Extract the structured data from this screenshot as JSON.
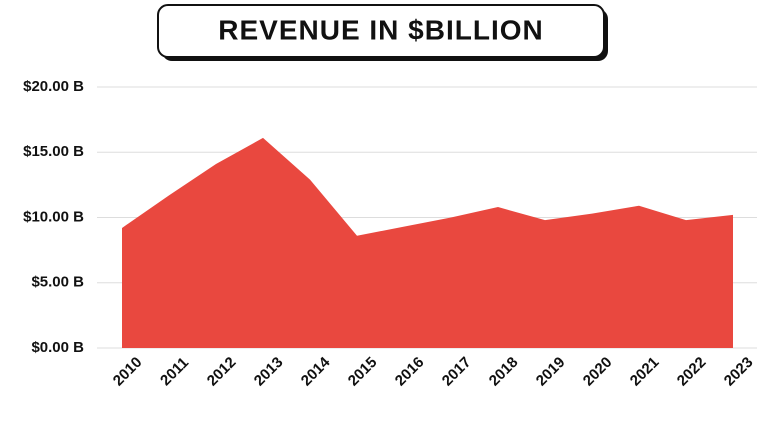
{
  "chart_data": {
    "type": "area",
    "title": "REVENUE IN $BILLION",
    "categories": [
      "2010",
      "2011",
      "2012",
      "2013",
      "2014",
      "2015",
      "2016",
      "2017",
      "2018",
      "2019",
      "2020",
      "2021",
      "2022",
      "2023"
    ],
    "values": [
      9.2,
      11.7,
      14.1,
      16.1,
      12.9,
      8.6,
      9.3,
      10.0,
      10.8,
      9.8,
      10.3,
      10.9,
      9.8,
      10.2
    ],
    "color": "#e9483f",
    "ylim": [
      0,
      20
    ],
    "yticks": [
      {
        "value": 0,
        "label": "$0.00 B"
      },
      {
        "value": 5,
        "label": "$5.00 B"
      },
      {
        "value": 10,
        "label": "$10.00 B"
      },
      {
        "value": 15,
        "label": "$15.00 B"
      },
      {
        "value": 20,
        "label": "$20.00 B"
      }
    ],
    "grid": true
  }
}
